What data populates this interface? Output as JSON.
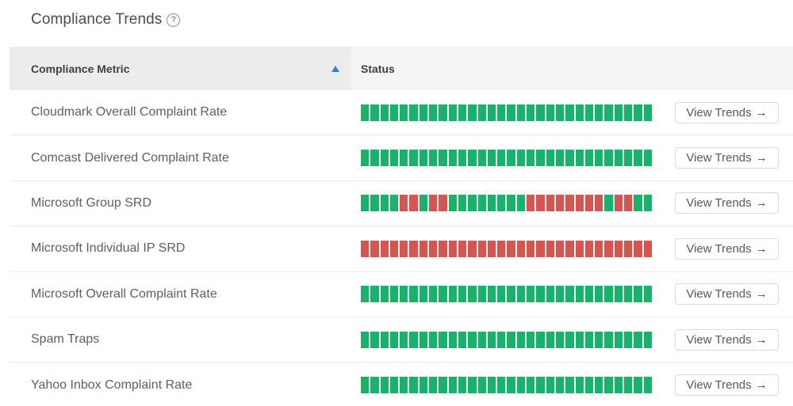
{
  "header": {
    "title": "Compliance Trends",
    "help_icon": "question-circle-icon",
    "help_glyph": "?"
  },
  "table": {
    "columns": {
      "metric": "Compliance Metric",
      "status": "Status",
      "sort": "ascending"
    },
    "colors": {
      "ok": "#16b36a",
      "bad": "#d9534f"
    },
    "button_label": "View Trends",
    "button_icon": "arrow-right-icon",
    "arrow_glyph": "→",
    "rows": [
      {
        "metric": "Cloudmark Overall Complaint Rate",
        "status": "GGGGGGGGGGGGGGGGGGGGGGGGGGGGGG"
      },
      {
        "metric": "Comcast Delivered Complaint Rate",
        "status": "GGGGGGGGGGGGGGGGGGGGGGGGGGGGGG"
      },
      {
        "metric": "Microsoft Group SRD",
        "status": "GGGGRRGRRGGGGGGGGRRRRRRRRGRRGG"
      },
      {
        "metric": "Microsoft Individual IP SRD",
        "status": "RRRRRRRRRRRRRRRRRRRRRRRRRRRRRR"
      },
      {
        "metric": "Microsoft Overall Complaint Rate",
        "status": "GGGGGGGGGGGGGGGGGGGGGGGGGGGGGG"
      },
      {
        "metric": "Spam Traps",
        "status": "GGGGGGGGGGGGGGGGGGGGGGGGGGGGGG"
      },
      {
        "metric": "Yahoo Inbox Complaint Rate",
        "status": "GGGGGGGGGGGGGGGGGGGGGGGGGGGGGG"
      }
    ]
  }
}
